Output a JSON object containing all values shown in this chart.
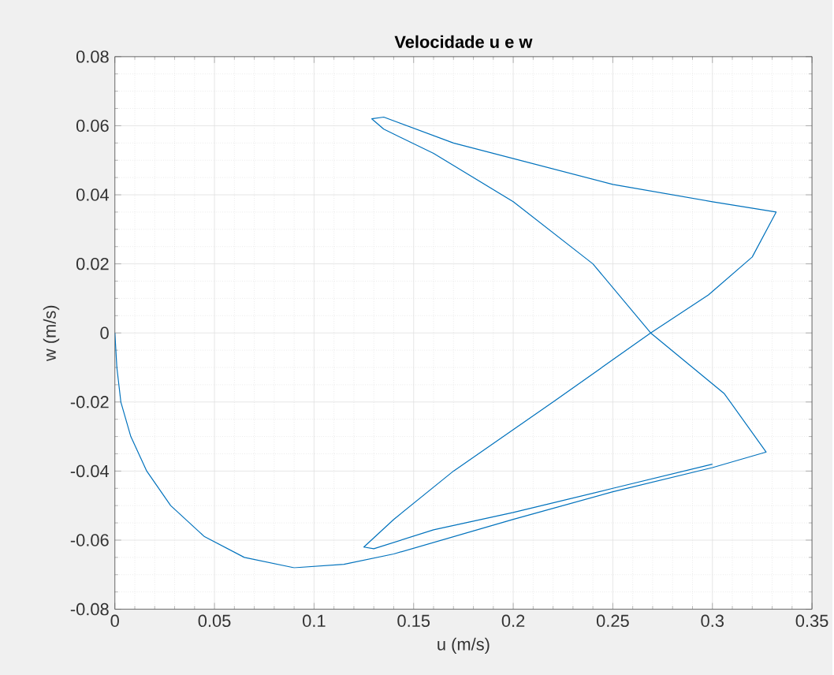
{
  "chart_data": {
    "type": "line",
    "title": "Velocidade u e w",
    "xlabel": "u (m/s)",
    "ylabel": "w (m/s)",
    "xlim": [
      0,
      0.35
    ],
    "ylim": [
      -0.08,
      0.08
    ],
    "xticks": [
      0,
      0.05,
      0.1,
      0.15,
      0.2,
      0.25,
      0.3,
      0.35
    ],
    "yticks": [
      -0.08,
      -0.06,
      -0.04,
      -0.02,
      0,
      0.02,
      0.04,
      0.06,
      0.08
    ],
    "grid": true,
    "marker": "none",
    "line_style": "solid",
    "series": [
      {
        "color": "#0072bd",
        "x": [
          0,
          0.001,
          0.003,
          0.008,
          0.016,
          0.028,
          0.045,
          0.065,
          0.09,
          0.115,
          0.14,
          0.2,
          0.25,
          0.3,
          0.327,
          0.306,
          0.269,
          0.24,
          0.2,
          0.16,
          0.135,
          0.129,
          0.135,
          0.17,
          0.25,
          0.3,
          0.332,
          0.32,
          0.298,
          0.269,
          0.22,
          0.17,
          0.14,
          0.125,
          0.13,
          0.16,
          0.2,
          0.25,
          0.3
        ],
        "values": [
          0,
          -0.01,
          -0.02,
          -0.03,
          -0.04,
          -0.05,
          -0.059,
          -0.065,
          -0.068,
          -0.067,
          -0.064,
          -0.054,
          -0.046,
          -0.039,
          -0.0345,
          -0.0176,
          0,
          0.02,
          0.038,
          0.052,
          0.059,
          0.062,
          0.0625,
          0.055,
          0.043,
          0.038,
          0.035,
          0.022,
          0.011,
          0,
          -0.02,
          -0.04,
          -0.054,
          -0.062,
          -0.0625,
          -0.057,
          -0.052,
          -0.045,
          -0.038
        ]
      }
    ]
  }
}
